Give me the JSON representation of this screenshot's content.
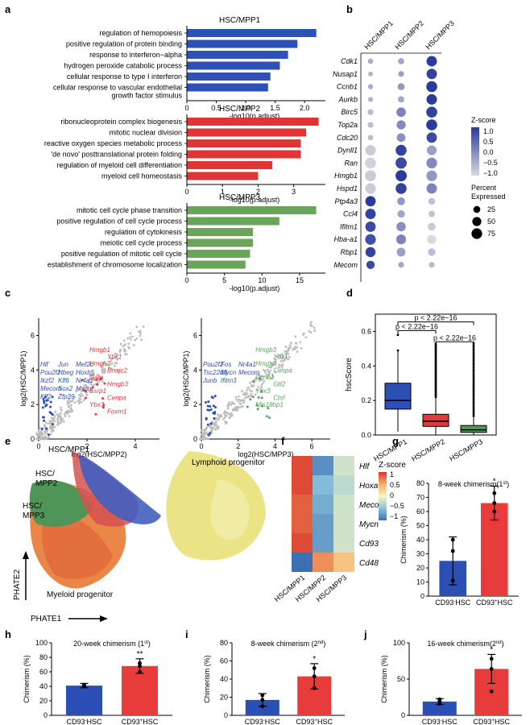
{
  "panels": {
    "a": {
      "letter": "a",
      "charts": [
        {
          "title": "HSC/MPP1",
          "color": "#2c52b8",
          "terms": [
            "regulation of hemopoiesis",
            "positive regulation of protein binding",
            "response to interferon−alpha",
            "hydrogen peroxide catabolic process",
            "cellular response to type I interferon",
            "cellular response to vascular endothelial",
            "growth factor stimulus"
          ],
          "values": [
            2.2,
            1.88,
            1.72,
            1.58,
            1.42,
            1.38
          ],
          "ticks": [
            "0",
            "0.5",
            "1.0",
            "1.5",
            "2.0"
          ],
          "xlabel": "-log10(p.adjust)"
        },
        {
          "title": "HSC/MPP2",
          "color": "#e03535",
          "terms": [
            "ribonucleoprotein complex biogenesis",
            "mitotic nuclear division",
            "reactive oxygen species metabolic process",
            "'de novo' posttranslational protein folding",
            "regulation of myeloid cell differentiation",
            "myeloid cell homeostasis"
          ],
          "values": [
            3.7,
            3.35,
            3.2,
            3.2,
            2.4,
            2.0
          ],
          "ticks": [
            "0",
            "1",
            "2",
            "3"
          ],
          "xlabel": "-log10(p.adjust)"
        },
        {
          "title": "HSC/MPP3",
          "color": "#6aa35a",
          "terms": [
            "mitotic cell cycle phase transition",
            "positive regulation of cell cycle process",
            "regulation of cytokinesis",
            "meiotic cell cycle process",
            "positive regulation of mitotic cell cycle",
            "establishment of chromosome localization"
          ],
          "values": [
            17.2,
            12.3,
            8.8,
            8.8,
            8.4,
            7.8
          ],
          "ticks": [
            "0",
            "5",
            "10",
            "15"
          ],
          "xlabel": "-log10(p.adjust)"
        }
      ]
    },
    "b": {
      "letter": "b",
      "columns": [
        "HSC/MPP1",
        "HSC/MPP2",
        "HSC/MPP3"
      ],
      "genes": [
        "Cdk1",
        "Nusap1",
        "Ccnb1",
        "Aurkb",
        "Birc5",
        "Top2a",
        "Cdc20",
        "Dynll1",
        "Ran",
        "Hmgb1",
        "Hspd1",
        "Ptp4a3",
        "Ccl4",
        "Ifitm1",
        "Hba-a1",
        "Rbp1",
        "Mecom"
      ],
      "zscore": [
        [
          -0.4,
          -0.3,
          1.2
        ],
        [
          -0.5,
          -0.2,
          1.1
        ],
        [
          -0.4,
          -0.1,
          1.2
        ],
        [
          -0.5,
          -0.3,
          1.2
        ],
        [
          -0.6,
          0.2,
          1.1
        ],
        [
          -0.6,
          0.1,
          1.2
        ],
        [
          -0.6,
          0.0,
          1.0
        ],
        [
          -0.8,
          1.1,
          -0.2
        ],
        [
          -0.9,
          1.0,
          0.1
        ],
        [
          -0.8,
          1.2,
          -0.1
        ],
        [
          -0.8,
          1.1,
          0.2
        ],
        [
          1.2,
          -0.1,
          -0.7
        ],
        [
          1.1,
          -0.3,
          -0.7
        ],
        [
          1.0,
          0.0,
          -0.8
        ],
        [
          0.9,
          0.2,
          -1.0
        ],
        [
          1.1,
          -0.2,
          -0.6
        ],
        [
          1.0,
          -0.3,
          -0.6
        ]
      ],
      "percent": [
        [
          12,
          18,
          70
        ],
        [
          8,
          15,
          70
        ],
        [
          10,
          25,
          80
        ],
        [
          10,
          20,
          72
        ],
        [
          15,
          55,
          80
        ],
        [
          15,
          50,
          80
        ],
        [
          12,
          45,
          70
        ],
        [
          70,
          80,
          60
        ],
        [
          80,
          85,
          75
        ],
        [
          80,
          85,
          75
        ],
        [
          75,
          80,
          70
        ],
        [
          70,
          35,
          25
        ],
        [
          70,
          30,
          20
        ],
        [
          70,
          55,
          35
        ],
        [
          75,
          60,
          50
        ],
        [
          65,
          45,
          30
        ],
        [
          40,
          15,
          15
        ]
      ],
      "legend_zscore_title": "Z-score",
      "legend_zscore_ticks": [
        "1.0",
        "0.5",
        "0.0",
        "−0.5",
        "−1.0"
      ],
      "legend_percent_title": "Percent",
      "legend_percent_title2": "Expressed",
      "legend_percent_values": [
        "25",
        "50",
        "75"
      ],
      "colors": {
        "high": "#2a3b9c",
        "low": "#d9d9de"
      }
    },
    "c": {
      "letter": "c",
      "left": {
        "xlabel": "log2(HSC/MPP2)",
        "ylabel": "log2(HSC/MPP1)",
        "xticks": [
          "0",
          "2",
          "4"
        ],
        "yticks": [
          "0",
          "2",
          "4",
          "6"
        ],
        "blue_labels": [
          "Hlf",
          "Jun",
          "Mef2c",
          "Pou2f2",
          "Hbeg",
          "Hoxb5",
          "Ikzf2",
          "Klf6",
          "Nr4a1",
          "Mecom",
          "Sox2",
          "Mycn",
          "Klf2",
          "Zfp39"
        ],
        "red_labels": [
          "Hmgb1",
          "Ybx1",
          "Hmgb2",
          "Dnajc2",
          "Gata",
          "Hmgb3",
          "Ssrp1",
          "Cenpa",
          "Ybx3",
          "Foxm1"
        ]
      },
      "right": {
        "xlabel": "log2(HSC/MPP3)",
        "ylabel": "log2(HSC/MPP1)",
        "xticks": [
          "0",
          "2",
          "4",
          "6"
        ],
        "yticks": [
          "0",
          "2",
          "4",
          "6"
        ],
        "blue_labels": [
          "Pou2f2",
          "Fos",
          "Nr4a1",
          "Tsc22d3",
          "Mycn",
          "Mecom",
          "Junb",
          "Ifitm3"
        ],
        "green_labels": [
          "Hmgb3",
          "Ybx1",
          "Hmgb2",
          "Cenpa",
          "Ccnb1",
          "Gtf2",
          "Ybx3",
          "Ctsf",
          "Mis18bp1"
        ]
      }
    },
    "d": {
      "letter": "d",
      "ylabel": "hscScore",
      "yticks": [
        "0.0",
        "0.2",
        "0.4",
        "0.6"
      ],
      "groups": [
        "HSC/MPP1",
        "HSC/MPP2",
        "HSC/MPP3"
      ],
      "colors": [
        "#2c4fb5",
        "#e03a3a",
        "#4f9a58"
      ],
      "boxes": [
        {
          "q1": 0.15,
          "median": 0.2,
          "q3": 0.3,
          "low": 0.02,
          "high": 0.49
        },
        {
          "q1": 0.05,
          "median": 0.08,
          "q3": 0.12,
          "low": 0.0,
          "high": 0.22
        },
        {
          "q1": 0.015,
          "median": 0.03,
          "q3": 0.055,
          "low": 0.0,
          "high": 0.11
        }
      ],
      "pvalues": [
        "p < 2.22e−16",
        "p < 2.22e−16",
        "p < 2.22e−16"
      ]
    },
    "e": {
      "letter": "e",
      "labels": [
        "HSC/MPP1",
        "HSC/\nMPP2",
        "HSC/\nMPP3",
        "Lymphoid progenitor",
        "Myeloid progenitor"
      ],
      "l1": "HSC/MPP1",
      "l2a": "HSC/",
      "l2b": "MPP2",
      "l3a": "HSC/",
      "l3b": "MPP3",
      "lymph": "Lymphoid progenitor",
      "myelo": "Myeloid progenitor",
      "xlabel": "PHATE1",
      "ylabel": "PHATE2"
    },
    "f": {
      "letter": "f",
      "genes": [
        "Hlf",
        "Hoxa9",
        "Mecom",
        "Mycn",
        "Cd93",
        "Cd48"
      ],
      "columns": [
        "HSC/MPP1",
        "HSC/MPP2",
        "HSC/MPP3"
      ],
      "z": [
        [
          1.0,
          -0.9,
          -0.2
        ],
        [
          1.0,
          -0.6,
          -0.3
        ],
        [
          0.9,
          -0.7,
          -0.2
        ],
        [
          0.9,
          -0.8,
          -0.2
        ],
        [
          1.0,
          -0.8,
          -0.2
        ],
        [
          -1.1,
          0.7,
          0.4
        ]
      ],
      "legend_title": "Z-score",
      "legend_ticks": [
        "1",
        "0.5",
        "0",
        "−0.5",
        "−1"
      ]
    },
    "bars": [
      {
        "letter": "g",
        "title": "8-week chimerism(1",
        "sup": "st",
        ".": "",
        "close": ")",
        "ylabel": "Chimerism (%)",
        "yticks": [
          "0",
          "10",
          "20",
          "30",
          "40",
          "50",
          "60",
          "70",
          "80"
        ],
        "ymax": 80,
        "cats": [
          "CD93",
          "CD93"
        ],
        "supcats": [
          "-",
          "+"
        ],
        "tail": "HSC",
        "values": [
          25,
          66
        ],
        "err": [
          17,
          12
        ],
        "points": [
          [
            11,
            32,
            40
          ],
          [
            60,
            66,
            73
          ]
        ],
        "star": "*"
      },
      {
        "letter": "h",
        "title": "20-week chimerism (1",
        "sup": "st",
        "close": ")",
        "ylabel": "Chimerism (%)",
        "yticks": [
          "0",
          "20",
          "40",
          "60",
          "80",
          "100"
        ],
        "ymax": 100,
        "cats": [
          "CD93",
          "CD93"
        ],
        "supcats": [
          "-",
          "+"
        ],
        "tail": "HSC",
        "values": [
          41,
          68
        ],
        "err": [
          3,
          10
        ],
        "points": [
          [
            40,
            42,
            41
          ],
          [
            60,
            68,
            72
          ]
        ],
        "star": "**"
      },
      {
        "letter": "i",
        "title": "8-week  chimerism (2",
        "sup": "nd",
        "close": ")",
        "ylabel": "Chimerism (%)",
        "yticks": [
          "0",
          "20",
          "40",
          "60",
          "80"
        ],
        "ymax": 80,
        "cats": [
          "CD93",
          "CD93"
        ],
        "supcats": [
          "-",
          "+"
        ],
        "tail": "HSC",
        "values": [
          17,
          43
        ],
        "err": [
          7,
          14
        ],
        "points": [
          [
            10,
            17,
            22
          ],
          [
            30,
            43,
            52
          ]
        ],
        "star": "*"
      },
      {
        "letter": "j",
        "title": "16-week  chimerism(2",
        "sup": "nd",
        "close": ")",
        "ylabel": "Chimerism (%)",
        "yticks": [
          "0",
          "50",
          "100"
        ],
        "ymax": 100,
        "cats": [
          "CD93",
          "CD93"
        ],
        "supcats": [
          "-",
          "+"
        ],
        "tail": "HSC",
        "values": [
          19,
          64
        ],
        "err": [
          4,
          20
        ],
        "points": [
          [
            16,
            19,
            22
          ],
          [
            33,
            64,
            78
          ]
        ],
        "star": "*"
      }
    ]
  }
}
